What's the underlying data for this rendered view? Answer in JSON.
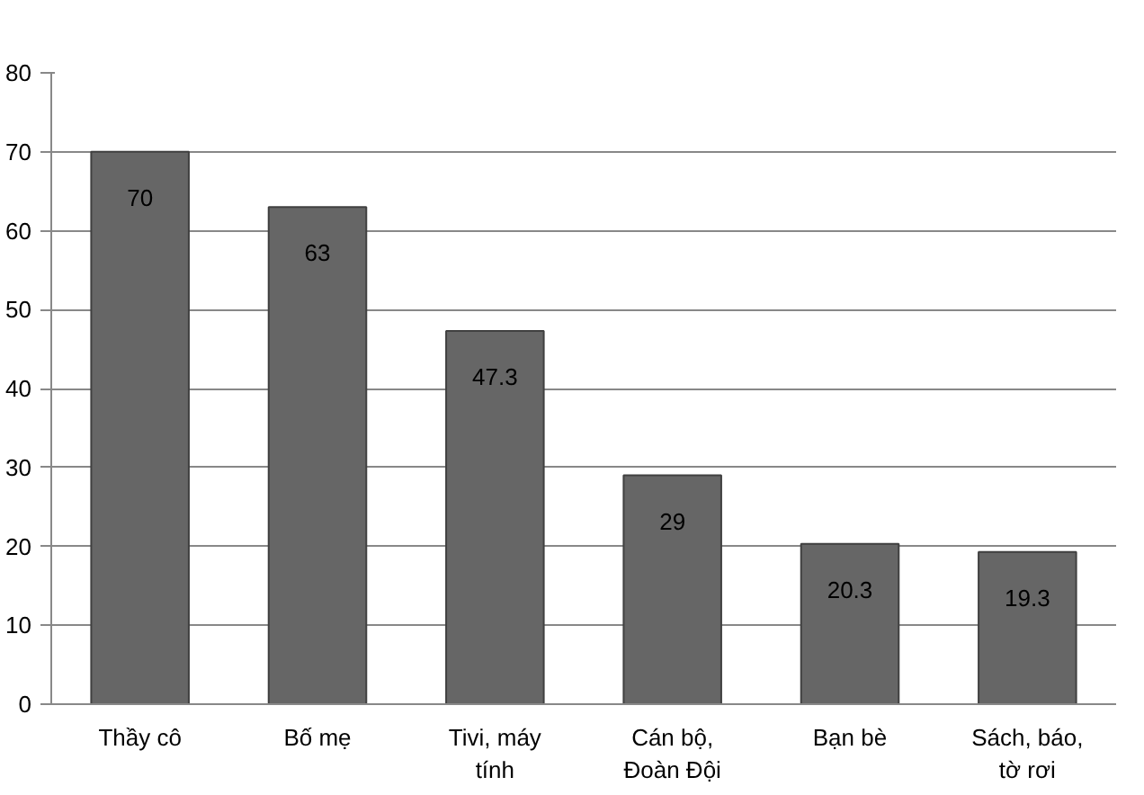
{
  "chart_data": {
    "type": "bar",
    "categories": [
      "Thầy cô",
      "Bố mẹ",
      "Tivi, máy tính",
      "Cán bộ, Đoàn Đội",
      "Bạn bè",
      "Sách, báo, tờ rơi"
    ],
    "values": [
      70,
      63,
      47.3,
      29,
      20.3,
      19.3
    ],
    "color": "#666666",
    "ylim": [
      0,
      80
    ],
    "yticks": [
      0,
      10,
      20,
      30,
      40,
      50,
      60,
      70,
      80
    ],
    "grid": "y",
    "data_labels": true
  }
}
